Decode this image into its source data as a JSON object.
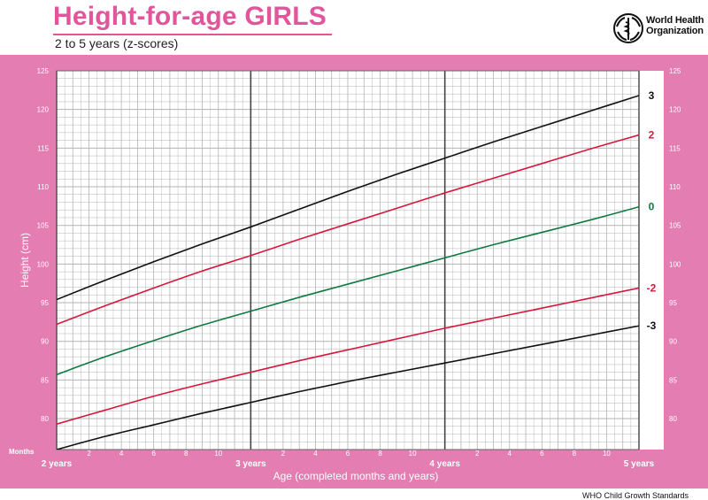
{
  "header": {
    "title": "Height-for-age GIRLS",
    "subtitle": "2 to 5 years (z-scores)"
  },
  "who": {
    "name_line1": "World Health",
    "name_line2": "Organization"
  },
  "footer": {
    "text": "WHO Child Growth Standards"
  },
  "colors": {
    "frame": "#e37db2",
    "grid": "#b3b3b3",
    "z_black": "#111111",
    "z_red": "#d6173d",
    "z_green": "#0d7a3f"
  },
  "chart_data": {
    "type": "line",
    "title": "Height-for-age GIRLS",
    "subtitle": "2 to 5 years (z-scores)",
    "xlabel": "Age (completed months and years)",
    "ylabel": "Height (cm)",
    "months_label": "Months",
    "x_unit": "months",
    "xlim": [
      24,
      60
    ],
    "ylim": [
      76,
      125
    ],
    "y_ticks": [
      80,
      85,
      90,
      95,
      100,
      105,
      110,
      115,
      120,
      125
    ],
    "x_month_ticks": [
      {
        "x": 26,
        "label": "2"
      },
      {
        "x": 28,
        "label": "4"
      },
      {
        "x": 30,
        "label": "6"
      },
      {
        "x": 32,
        "label": "8"
      },
      {
        "x": 34,
        "label": "10"
      },
      {
        "x": 38,
        "label": "2"
      },
      {
        "x": 40,
        "label": "4"
      },
      {
        "x": 42,
        "label": "6"
      },
      {
        "x": 44,
        "label": "8"
      },
      {
        "x": 46,
        "label": "10"
      },
      {
        "x": 50,
        "label": "2"
      },
      {
        "x": 52,
        "label": "4"
      },
      {
        "x": 54,
        "label": "6"
      },
      {
        "x": 56,
        "label": "8"
      },
      {
        "x": 58,
        "label": "10"
      }
    ],
    "x_year_ticks": [
      {
        "x": 24,
        "label": "2 years"
      },
      {
        "x": 36,
        "label": "3 years"
      },
      {
        "x": 48,
        "label": "4 years"
      },
      {
        "x": 60,
        "label": "5 years"
      }
    ],
    "grid": true,
    "x": [
      24,
      27,
      30,
      33,
      36,
      39,
      42,
      45,
      48,
      51,
      54,
      57,
      60
    ],
    "series": [
      {
        "name": "3",
        "color": "#111111",
        "values": [
          95.4,
          97.9,
          100.3,
          102.6,
          104.8,
          107.1,
          109.4,
          111.6,
          113.7,
          115.8,
          117.8,
          119.8,
          121.8
        ]
      },
      {
        "name": "2",
        "color": "#d6173d",
        "values": [
          92.2,
          94.6,
          96.9,
          99.1,
          101.1,
          103.2,
          105.2,
          107.2,
          109.2,
          111.1,
          113.0,
          114.9,
          116.7
        ]
      },
      {
        "name": "0",
        "color": "#0d7a3f",
        "values": [
          85.7,
          88.0,
          90.1,
          92.1,
          93.9,
          95.7,
          97.4,
          99.1,
          100.8,
          102.5,
          104.1,
          105.7,
          107.4
        ]
      },
      {
        "name": "-2",
        "color": "#d6173d",
        "values": [
          79.3,
          81.1,
          82.9,
          84.5,
          86.0,
          87.5,
          88.9,
          90.3,
          91.7,
          93.0,
          94.3,
          95.6,
          96.9
        ]
      },
      {
        "name": "-3",
        "color": "#111111",
        "values": [
          76.0,
          77.7,
          79.2,
          80.7,
          82.1,
          83.5,
          84.8,
          86.0,
          87.2,
          88.4,
          89.6,
          90.8,
          92.0
        ]
      }
    ]
  }
}
